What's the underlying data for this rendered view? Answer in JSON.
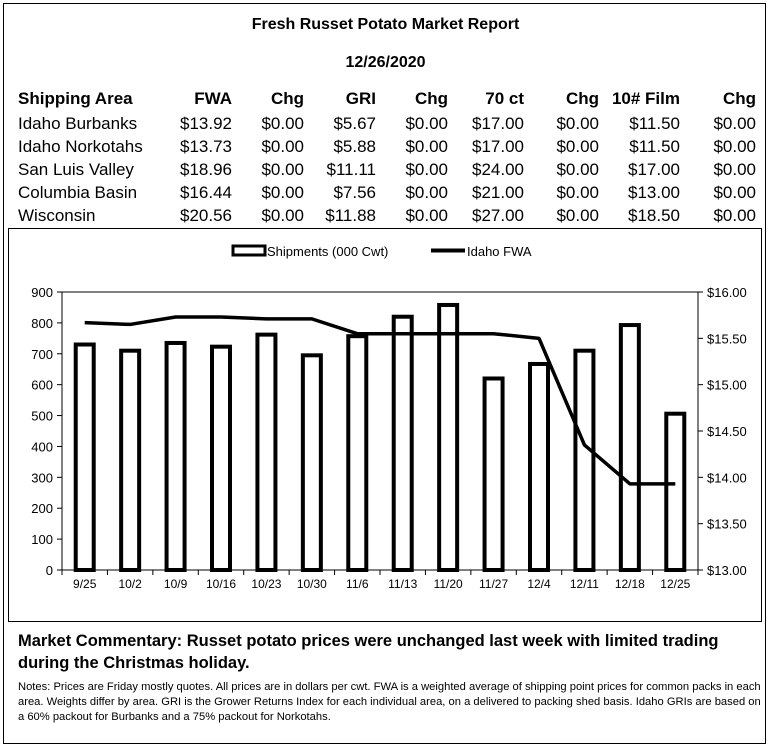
{
  "report": {
    "title": "Fresh Russet Potato Market Report",
    "date": "12/26/2020"
  },
  "price_table": {
    "headers": [
      "Shipping Area",
      "FWA",
      "Chg",
      "GRI",
      "Chg",
      "70 ct",
      "Chg",
      "10# Film",
      "Chg"
    ],
    "rows": [
      [
        "Idaho Burbanks",
        "$13.92",
        "$0.00",
        "$5.67",
        "$0.00",
        "$17.00",
        "$0.00",
        "$11.50",
        "$0.00"
      ],
      [
        "Idaho Norkotahs",
        "$13.73",
        "$0.00",
        "$5.88",
        "$0.00",
        "$17.00",
        "$0.00",
        "$11.50",
        "$0.00"
      ],
      [
        "San Luis Valley",
        "$18.96",
        "$0.00",
        "$11.11",
        "$0.00",
        "$24.00",
        "$0.00",
        "$17.00",
        "$0.00"
      ],
      [
        "Columbia Basin",
        "$16.44",
        "$0.00",
        "$7.56",
        "$0.00",
        "$21.00",
        "$0.00",
        "$13.00",
        "$0.00"
      ],
      [
        "Wisconsin",
        "$20.56",
        "$0.00",
        "$11.88",
        "$0.00",
        "$27.00",
        "$0.00",
        "$18.50",
        "$0.00"
      ]
    ]
  },
  "chart_data": {
    "type": "bar",
    "categories": [
      "9/25",
      "10/2",
      "10/9",
      "10/16",
      "10/23",
      "10/30",
      "11/6",
      "11/13",
      "11/20",
      "11/27",
      "12/4",
      "12/11",
      "12/18",
      "12/25"
    ],
    "series": [
      {
        "name": "Shipments (000 Cwt)",
        "type": "bar",
        "axis": "left",
        "values": [
          730,
          710,
          735,
          723,
          762,
          695,
          757,
          820,
          858,
          620,
          667,
          710,
          793,
          506
        ]
      },
      {
        "name": "Idaho FWA",
        "type": "line",
        "axis": "right",
        "values": [
          15.67,
          15.65,
          15.73,
          15.73,
          15.71,
          15.71,
          15.55,
          15.55,
          15.55,
          15.55,
          15.5,
          14.35,
          13.93,
          13.93
        ]
      }
    ],
    "y_left": {
      "min": 0,
      "max": 900,
      "ticks": [
        0,
        100,
        200,
        300,
        400,
        500,
        600,
        700,
        800,
        900
      ],
      "tick_labels": [
        "0",
        "100",
        "200",
        "300",
        "400",
        "500",
        "600",
        "700",
        "800",
        "900"
      ]
    },
    "y_right": {
      "min": 13.0,
      "max": 16.0,
      "ticks": [
        13.0,
        13.5,
        14.0,
        14.5,
        15.0,
        15.5,
        16.0
      ],
      "tick_labels": [
        "$13.00",
        "$13.50",
        "$14.00",
        "$14.50",
        "$15.00",
        "$15.50",
        "$16.00"
      ]
    },
    "legend_position": "top-center",
    "grid": false
  },
  "commentary": {
    "text": "Market Commentary: Russet potato prices were unchanged last week with limited trading during the Christmas holiday."
  },
  "notes": {
    "text": "Notes: Prices are Friday mostly quotes. All prices are in dollars per cwt. FWA is a weighted average of shipping point prices for  common packs in each area. Weights differ by area. GRI is the Grower Returns Index for each individual area, on a delivered to packing shed basis. Idaho GRIs are based on a 60% packout for Burbanks and a 75% packout for Norkotahs."
  }
}
